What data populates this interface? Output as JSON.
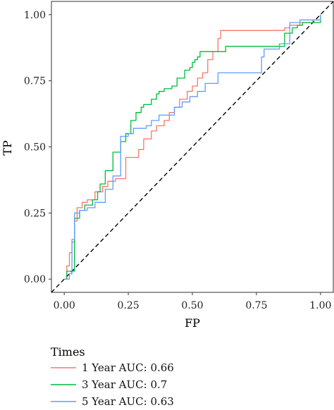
{
  "chart_data": {
    "type": "line",
    "xlabel": "FP",
    "ylabel": "TP",
    "xlim": [
      -0.05,
      1.05
    ],
    "ylim": [
      -0.05,
      1.05
    ],
    "x_ticks": [
      "0.00",
      "0.25",
      "0.50",
      "0.75",
      "1.00"
    ],
    "y_ticks": [
      "0.00",
      "0.25",
      "0.50",
      "0.75",
      "1.00"
    ],
    "grid": false,
    "reference_line": {
      "from": [
        -0.05,
        -0.05
      ],
      "to": [
        1.05,
        1.05
      ],
      "style": "dashed"
    },
    "legend": {
      "title": "Times",
      "position": "bottom"
    },
    "series": [
      {
        "name": "1 Year AUC: 0.66",
        "color": "#F8766D",
        "x": [
          0.0,
          0.01,
          0.01,
          0.02,
          0.02,
          0.03,
          0.03,
          0.04,
          0.04,
          0.05,
          0.05,
          0.07,
          0.07,
          0.09,
          0.09,
          0.12,
          0.12,
          0.15,
          0.15,
          0.17,
          0.17,
          0.2,
          0.2,
          0.24,
          0.24,
          0.29,
          0.29,
          0.31,
          0.31,
          0.34,
          0.34,
          0.36,
          0.36,
          0.39,
          0.39,
          0.41,
          0.41,
          0.43,
          0.43,
          0.45,
          0.45,
          0.48,
          0.48,
          0.5,
          0.5,
          0.52,
          0.52,
          0.54,
          0.54,
          0.56,
          0.56,
          0.58,
          0.58,
          0.6,
          0.6,
          0.61,
          0.61,
          0.63,
          0.63,
          0.86,
          0.86,
          0.88,
          0.88,
          0.92,
          0.92,
          0.97,
          0.97,
          1.0,
          1.0
        ],
        "y": [
          0.0,
          0.0,
          0.05,
          0.05,
          0.1,
          0.1,
          0.14,
          0.14,
          0.22,
          0.22,
          0.27,
          0.27,
          0.29,
          0.29,
          0.3,
          0.3,
          0.33,
          0.33,
          0.35,
          0.35,
          0.37,
          0.37,
          0.38,
          0.38,
          0.46,
          0.46,
          0.49,
          0.49,
          0.53,
          0.53,
          0.56,
          0.56,
          0.58,
          0.58,
          0.6,
          0.6,
          0.63,
          0.63,
          0.65,
          0.65,
          0.68,
          0.68,
          0.71,
          0.71,
          0.73,
          0.73,
          0.76,
          0.76,
          0.78,
          0.78,
          0.83,
          0.83,
          0.86,
          0.86,
          0.91,
          0.91,
          0.94,
          0.94,
          0.94,
          0.94,
          0.95,
          0.95,
          0.96,
          0.96,
          0.97,
          0.97,
          0.98,
          0.98,
          1.0
        ]
      },
      {
        "name": "3 Year AUC: 0.7",
        "color": "#00BA38",
        "x": [
          0.0,
          0.01,
          0.01,
          0.04,
          0.04,
          0.06,
          0.06,
          0.08,
          0.08,
          0.11,
          0.11,
          0.13,
          0.13,
          0.14,
          0.14,
          0.16,
          0.16,
          0.19,
          0.19,
          0.22,
          0.22,
          0.24,
          0.24,
          0.26,
          0.26,
          0.28,
          0.28,
          0.3,
          0.3,
          0.31,
          0.31,
          0.34,
          0.34,
          0.36,
          0.36,
          0.37,
          0.37,
          0.39,
          0.39,
          0.42,
          0.42,
          0.44,
          0.44,
          0.47,
          0.47,
          0.49,
          0.49,
          0.5,
          0.5,
          0.51,
          0.51,
          0.52,
          0.52,
          0.53,
          0.53,
          0.56,
          0.56,
          0.63,
          0.63,
          0.78,
          0.78,
          0.86,
          0.86,
          0.89,
          0.89,
          0.91,
          0.91,
          0.93,
          0.93,
          1.0,
          1.0
        ],
        "y": [
          0.0,
          0.0,
          0.03,
          0.03,
          0.23,
          0.23,
          0.26,
          0.26,
          0.28,
          0.28,
          0.3,
          0.3,
          0.33,
          0.33,
          0.36,
          0.36,
          0.41,
          0.41,
          0.48,
          0.48,
          0.52,
          0.52,
          0.55,
          0.55,
          0.6,
          0.6,
          0.63,
          0.63,
          0.65,
          0.65,
          0.66,
          0.66,
          0.68,
          0.68,
          0.7,
          0.7,
          0.71,
          0.71,
          0.72,
          0.72,
          0.73,
          0.73,
          0.76,
          0.76,
          0.79,
          0.79,
          0.8,
          0.8,
          0.82,
          0.82,
          0.83,
          0.83,
          0.84,
          0.84,
          0.86,
          0.86,
          0.86,
          0.86,
          0.88,
          0.88,
          0.88,
          0.88,
          0.93,
          0.93,
          0.95,
          0.95,
          0.96,
          0.96,
          0.97,
          0.97,
          1.0
        ]
      },
      {
        "name": "5 Year AUC: 0.63",
        "color": "#619CFF",
        "x": [
          0.0,
          0.02,
          0.02,
          0.03,
          0.03,
          0.04,
          0.04,
          0.06,
          0.06,
          0.09,
          0.09,
          0.12,
          0.12,
          0.16,
          0.16,
          0.19,
          0.19,
          0.22,
          0.22,
          0.25,
          0.25,
          0.27,
          0.27,
          0.32,
          0.32,
          0.34,
          0.34,
          0.37,
          0.37,
          0.43,
          0.43,
          0.46,
          0.46,
          0.49,
          0.49,
          0.52,
          0.52,
          0.55,
          0.55,
          0.6,
          0.6,
          0.64,
          0.64,
          0.77,
          0.77,
          0.78,
          0.78,
          0.84,
          0.84,
          0.88,
          0.88,
          0.92,
          0.92,
          1.0,
          1.0
        ],
        "y": [
          0.0,
          0.0,
          0.02,
          0.02,
          0.15,
          0.15,
          0.25,
          0.25,
          0.26,
          0.26,
          0.27,
          0.27,
          0.29,
          0.29,
          0.34,
          0.34,
          0.39,
          0.39,
          0.54,
          0.54,
          0.55,
          0.55,
          0.57,
          0.57,
          0.58,
          0.58,
          0.6,
          0.6,
          0.62,
          0.62,
          0.65,
          0.65,
          0.67,
          0.67,
          0.69,
          0.69,
          0.71,
          0.71,
          0.74,
          0.74,
          0.78,
          0.78,
          0.78,
          0.78,
          0.84,
          0.84,
          0.87,
          0.87,
          0.89,
          0.89,
          0.97,
          0.97,
          0.98,
          0.98,
          1.0
        ]
      }
    ]
  }
}
